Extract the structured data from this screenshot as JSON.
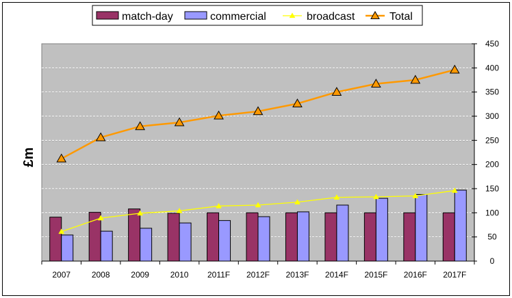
{
  "chart_data": {
    "type": "bar",
    "title": "",
    "xlabel": "",
    "ylabel": "£m",
    "ylim": [
      0,
      450
    ],
    "yticks": [
      0,
      50,
      100,
      150,
      200,
      250,
      300,
      350,
      400,
      450
    ],
    "y_axis_side": "right",
    "grid": true,
    "legend_position": "top",
    "categories": [
      "2007",
      "2008",
      "2009",
      "2010",
      "2011F",
      "2012F",
      "2013F",
      "2014F",
      "2015F",
      "2016F",
      "2017F"
    ],
    "series": [
      {
        "name": "match-day",
        "type": "bar",
        "color": "#993366",
        "values": [
          91,
          101,
          108,
          99,
          100,
          100,
          100,
          100,
          100,
          100,
          100
        ]
      },
      {
        "name": "commercial",
        "type": "bar",
        "color": "#9999FF",
        "values": [
          54,
          62,
          68,
          79,
          84,
          92,
          102,
          116,
          130,
          138,
          147
        ]
      },
      {
        "name": "broadcast",
        "type": "line",
        "color": "#FFFF00",
        "marker": "triangle",
        "values": [
          61,
          89,
          99,
          104,
          114,
          116,
          122,
          132,
          133,
          135,
          146
        ]
      },
      {
        "name": "Total",
        "type": "line",
        "color": "#FF9900",
        "marker": "triangle",
        "values": [
          212,
          256,
          279,
          287,
          301,
          310,
          326,
          350,
          367,
          375,
          396
        ]
      }
    ],
    "plot_background": "#C0C0C0"
  }
}
